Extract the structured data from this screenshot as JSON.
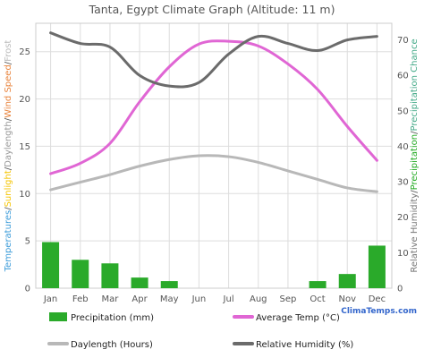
{
  "chart_data": {
    "type": "combo",
    "title": "Tanta, Egypt Climate Graph (Altitude: 11 m)",
    "categories": [
      "Jan",
      "Feb",
      "Mar",
      "Apr",
      "May",
      "Jun",
      "Jul",
      "Aug",
      "Sep",
      "Oct",
      "Nov",
      "Dec"
    ],
    "left_axis": {
      "label_parts": [
        {
          "text": "Temperatures",
          "color": "#3a9bd9"
        },
        {
          "text": "/",
          "color": "#555555"
        },
        {
          "text": "Sunlight",
          "color": "#f5c400"
        },
        {
          "text": "/",
          "color": "#555555"
        },
        {
          "text": "Daylength",
          "color": "#999999"
        },
        {
          "text": "/",
          "color": "#555555"
        },
        {
          "text": "Wind Speed",
          "color": "#e8823a"
        },
        {
          "text": "/",
          "color": "#555555"
        },
        {
          "text": "Frost",
          "color": "#bbbbbb"
        }
      ],
      "ylim": [
        0,
        28
      ],
      "ticks": [
        0,
        5,
        10,
        15,
        20,
        25
      ]
    },
    "right_axis": {
      "label_parts": [
        {
          "text": "Relative Humidity",
          "color": "#777777"
        },
        {
          "text": "/",
          "color": "#555555"
        },
        {
          "text": "Precipitation",
          "color": "#22aa22"
        },
        {
          "text": "/",
          "color": "#555555"
        },
        {
          "text": "Precipitation Chance",
          "color": "#44aa88"
        }
      ],
      "ylim": [
        0,
        74.7
      ],
      "ticks": [
        0,
        10,
        20,
        30,
        40,
        50,
        60,
        70
      ]
    },
    "series": [
      {
        "name": "Precipitation (mm)",
        "kind": "bar",
        "axis": "right",
        "color": "#2aaa2a",
        "values": [
          13,
          8,
          7,
          3,
          2,
          0,
          0,
          0,
          0,
          2,
          4,
          12
        ]
      },
      {
        "name": "Average Temp (°C)",
        "kind": "line",
        "axis": "left",
        "color": "#e066d4",
        "values": [
          12.1,
          13.2,
          15.3,
          19.7,
          23.4,
          25.8,
          26.1,
          25.6,
          23.7,
          21.0,
          17.1,
          13.5
        ]
      },
      {
        "name": "Daylength (Hours)",
        "kind": "line",
        "axis": "left",
        "color": "#b8b8b8",
        "values": [
          10.4,
          11.2,
          12.0,
          12.9,
          13.6,
          14.0,
          13.9,
          13.3,
          12.4,
          11.5,
          10.6,
          10.2
        ]
      },
      {
        "name": "Relative Humidity (%)",
        "kind": "line",
        "axis": "right",
        "color": "#6b6b6b",
        "values": [
          72,
          69,
          68,
          60,
          57,
          58,
          66,
          71,
          69,
          67,
          70,
          71
        ]
      }
    ],
    "legend_position": "bottom",
    "grid": true
  },
  "brand": {
    "text": "ClimaTemps.com",
    "color": "#3366cc"
  }
}
